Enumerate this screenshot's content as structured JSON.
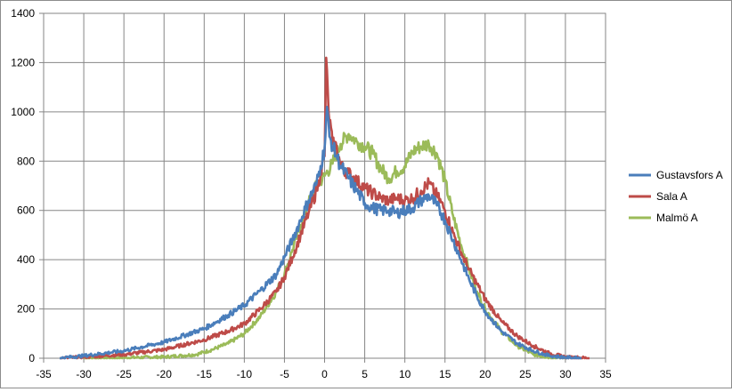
{
  "chart_data": {
    "type": "line",
    "title": "",
    "xlabel": "",
    "ylabel": "",
    "xlim": [
      -35,
      35
    ],
    "ylim": [
      0,
      1400
    ],
    "x_ticks": [
      -35,
      -30,
      -25,
      -20,
      -15,
      -10,
      -5,
      0,
      5,
      10,
      15,
      20,
      25,
      30,
      35
    ],
    "y_ticks": [
      0,
      200,
      400,
      600,
      800,
      1000,
      1200,
      1400
    ],
    "grid": true,
    "legend_position": "right",
    "series": [
      {
        "name": "Gustavsfors A",
        "color": "#4a7ebb",
        "x": [
          -33,
          -30,
          -25,
          -20,
          -15,
          -12,
          -10,
          -8,
          -6,
          -5,
          -4,
          -3,
          -2,
          -1,
          -0.5,
          0,
          0.3,
          0.6,
          1,
          1.5,
          2,
          3,
          4,
          5,
          6,
          7,
          8,
          9,
          10,
          11,
          12,
          13,
          14,
          15,
          16,
          17,
          18,
          19,
          20,
          22,
          24,
          26,
          28,
          30,
          32
        ],
        "y": [
          0,
          10,
          30,
          65,
          120,
          175,
          215,
          275,
          340,
          410,
          480,
          560,
          640,
          710,
          780,
          850,
          1020,
          900,
          860,
          820,
          780,
          730,
          680,
          630,
          610,
          600,
          600,
          590,
          600,
          610,
          640,
          660,
          620,
          560,
          480,
          400,
          320,
          250,
          190,
          110,
          60,
          30,
          10,
          3,
          0
        ]
      },
      {
        "name": "Sala A",
        "color": "#be4b48",
        "x": [
          -33,
          -30,
          -25,
          -20,
          -15,
          -12,
          -10,
          -8,
          -6,
          -5,
          -4,
          -3,
          -2,
          -1,
          -0.5,
          0,
          0.2,
          0.5,
          1,
          1.5,
          2,
          3,
          4,
          5,
          6,
          7,
          8,
          9,
          10,
          11,
          12,
          13,
          14,
          15,
          16,
          17,
          18,
          19,
          20,
          22,
          24,
          26,
          28,
          30,
          33
        ],
        "y": [
          0,
          5,
          15,
          35,
          75,
          110,
          140,
          200,
          270,
          330,
          410,
          500,
          590,
          680,
          750,
          820,
          1220,
          1000,
          870,
          860,
          780,
          750,
          720,
          690,
          670,
          650,
          640,
          650,
          640,
          650,
          680,
          710,
          660,
          600,
          510,
          430,
          360,
          300,
          240,
          150,
          90,
          50,
          20,
          5,
          0
        ]
      },
      {
        "name": "Malmö A",
        "color": "#9bbb59",
        "x": [
          -30,
          -25,
          -20,
          -16,
          -14,
          -12,
          -10,
          -8,
          -6,
          -5,
          -4,
          -3,
          -2,
          -1,
          0,
          1,
          2,
          3,
          4,
          5,
          6,
          7,
          8,
          9,
          10,
          11,
          12,
          13,
          14,
          15,
          16,
          17,
          18,
          19,
          20,
          22,
          24,
          26,
          28,
          30
        ],
        "y": [
          0,
          2,
          5,
          15,
          35,
          60,
          100,
          170,
          270,
          340,
          440,
          540,
          630,
          700,
          740,
          790,
          870,
          910,
          880,
          860,
          830,
          770,
          730,
          760,
          780,
          840,
          860,
          870,
          830,
          720,
          580,
          460,
          360,
          270,
          200,
          110,
          50,
          15,
          3,
          0
        ]
      }
    ]
  }
}
